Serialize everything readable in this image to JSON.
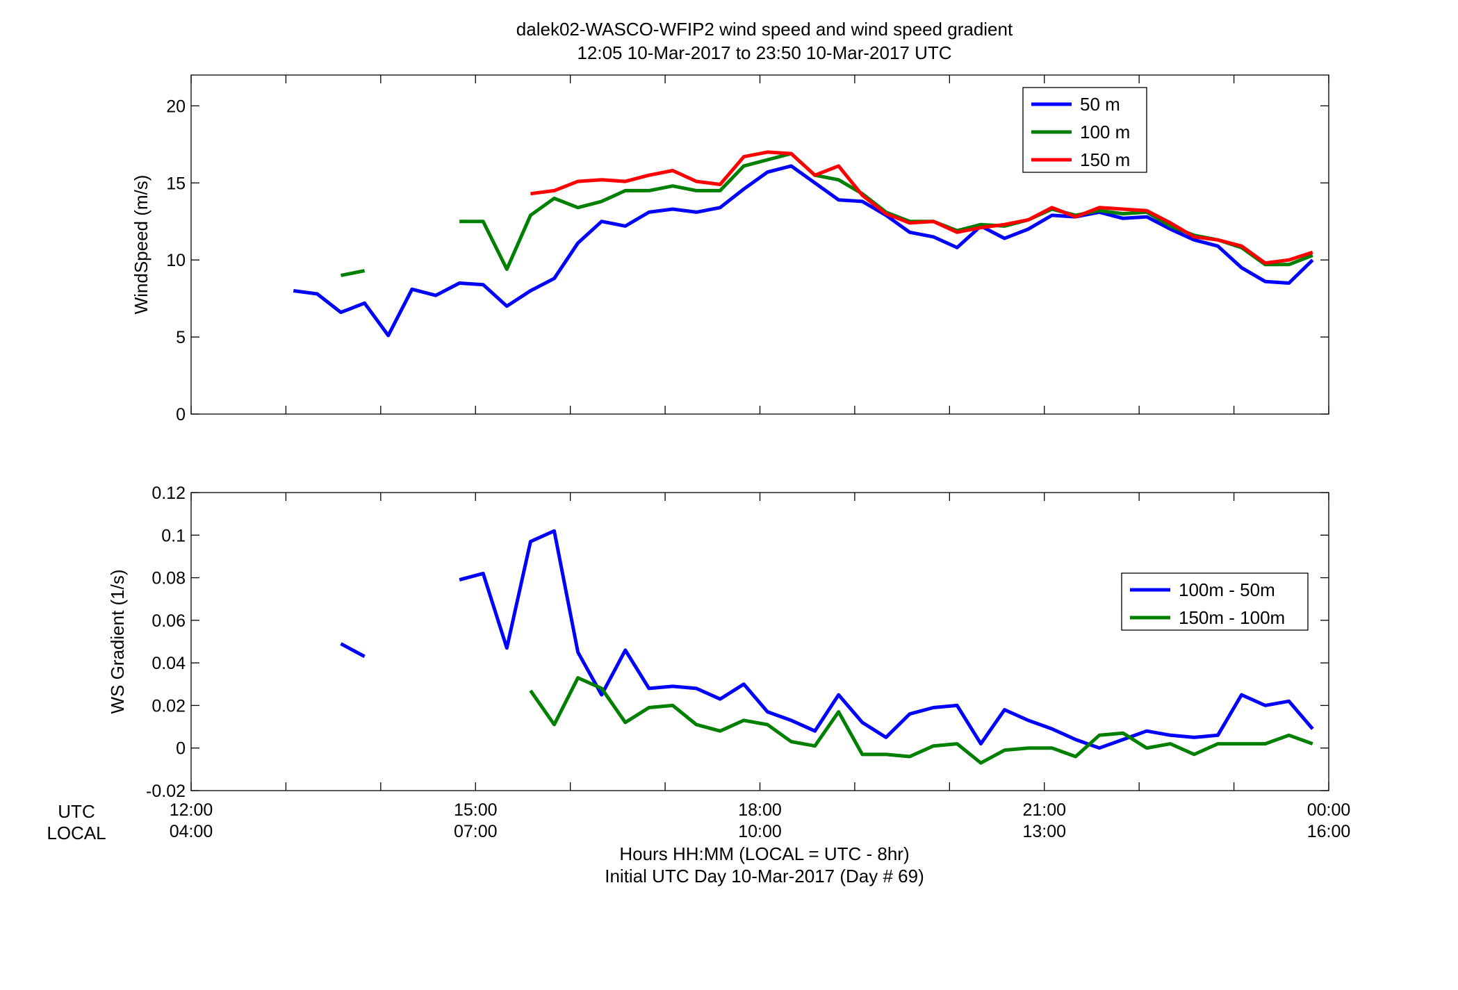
{
  "title": {
    "line1": "dalek02-WASCO-WFIP2  wind speed and wind speed gradient",
    "line2": "12:05 10-Mar-2017 to 23:50 10-Mar-2017  UTC"
  },
  "xaxis": {
    "utc_row_label": "UTC",
    "local_row_label": "LOCAL",
    "utc_ticks": [
      "12:00",
      "15:00",
      "18:00",
      "21:00",
      "00:00"
    ],
    "local_ticks": [
      "04:00",
      "07:00",
      "10:00",
      "13:00",
      "16:00"
    ],
    "label_line1": "Hours HH:MM  (LOCAL = UTC - 8hr)",
    "label_line2": "Initial UTC Day 10-Mar-2017 (Day # 69)"
  },
  "chart_data": [
    {
      "type": "line",
      "ylabel": "WindSpeed (m/s)",
      "xlim": [
        12.0,
        24.0
      ],
      "ylim": [
        0,
        22
      ],
      "yticks": [
        0,
        5,
        10,
        15,
        20
      ],
      "ytick_labels": [
        "0",
        "5",
        "10",
        "15",
        "20"
      ],
      "grid": false,
      "legend_position": "top-right",
      "x_units": "hours UTC",
      "series": [
        {
          "name": "50 m",
          "color": "#0000ff",
          "x": [
            13.08,
            13.33,
            13.58,
            13.83,
            14.08,
            14.33,
            14.58,
            14.83,
            15.08,
            15.33,
            15.58,
            15.83,
            16.08,
            16.33,
            16.58,
            16.83,
            17.08,
            17.33,
            17.58,
            17.83,
            18.08,
            18.33,
            18.58,
            18.83,
            19.08,
            19.33,
            19.58,
            19.83,
            20.08,
            20.33,
            20.58,
            20.83,
            21.08,
            21.33,
            21.58,
            21.83,
            22.08,
            22.33,
            22.58,
            22.83,
            23.08,
            23.33,
            23.58,
            23.83
          ],
          "y": [
            8.0,
            7.8,
            6.6,
            7.2,
            5.1,
            8.1,
            7.7,
            8.5,
            8.4,
            7.0,
            8.0,
            8.8,
            11.1,
            12.5,
            12.2,
            13.1,
            13.3,
            13.1,
            13.4,
            14.6,
            15.7,
            16.1,
            15.0,
            13.9,
            13.8,
            12.9,
            11.8,
            11.5,
            10.8,
            12.2,
            11.4,
            12.0,
            12.9,
            12.8,
            13.1,
            12.7,
            12.8,
            12.0,
            11.3,
            10.9,
            9.5,
            8.6,
            8.5,
            10.0
          ]
        },
        {
          "name": "100 m",
          "color": "#007f00",
          "x": [
            13.58,
            13.83,
            null,
            14.83,
            15.08,
            15.33,
            15.58,
            15.83,
            16.08,
            16.33,
            16.58,
            16.83,
            17.08,
            17.33,
            17.58,
            17.83,
            18.08,
            18.33,
            18.58,
            18.83,
            19.08,
            19.33,
            19.58,
            19.83,
            20.08,
            20.33,
            20.58,
            20.83,
            21.08,
            21.33,
            21.58,
            21.83,
            22.08,
            22.33,
            22.58,
            22.83,
            23.08,
            23.33,
            23.58,
            23.83
          ],
          "y": [
            9.0,
            9.3,
            null,
            12.5,
            12.5,
            9.4,
            12.9,
            14.0,
            13.4,
            13.8,
            14.5,
            14.5,
            14.8,
            14.5,
            14.5,
            16.1,
            16.5,
            16.9,
            15.5,
            15.2,
            14.3,
            13.1,
            12.5,
            12.5,
            11.9,
            12.3,
            12.2,
            12.6,
            13.3,
            12.9,
            13.2,
            13.0,
            13.1,
            12.2,
            11.6,
            11.3,
            10.8,
            9.7,
            9.7,
            10.3
          ]
        },
        {
          "name": "150 m",
          "color": "#ff0000",
          "x": [
            15.58,
            15.83,
            16.08,
            16.33,
            16.58,
            16.83,
            17.08,
            17.33,
            17.58,
            17.83,
            18.08,
            18.33,
            18.58,
            18.83,
            19.08,
            19.33,
            19.58,
            19.83,
            20.08,
            20.33,
            20.58,
            20.83,
            21.08,
            21.33,
            21.58,
            21.83,
            22.08,
            22.33,
            22.58,
            22.83,
            23.08,
            23.33,
            23.58,
            23.83
          ],
          "y": [
            14.3,
            14.5,
            15.1,
            15.2,
            15.1,
            15.5,
            15.8,
            15.1,
            14.9,
            16.7,
            17.0,
            16.9,
            15.5,
            16.1,
            14.2,
            13.0,
            12.4,
            12.5,
            11.8,
            12.1,
            12.3,
            12.6,
            13.4,
            12.8,
            13.4,
            13.3,
            13.2,
            12.4,
            11.5,
            11.3,
            10.9,
            9.8,
            10.0,
            10.5
          ]
        }
      ]
    },
    {
      "type": "line",
      "ylabel": "WS Gradient (1/s)",
      "xlim": [
        12.0,
        24.0
      ],
      "ylim": [
        -0.02,
        0.12
      ],
      "yticks": [
        -0.02,
        0,
        0.02,
        0.04,
        0.06,
        0.08,
        0.1,
        0.12
      ],
      "ytick_labels": [
        "-0.02",
        "0",
        "0.02",
        "0.04",
        "0.06",
        "0.08",
        "0.1",
        "0.12"
      ],
      "grid": false,
      "legend_position": "right",
      "x_units": "hours UTC",
      "series": [
        {
          "name": "100m - 50m",
          "color": "#0000ff",
          "x": [
            13.58,
            13.83,
            null,
            14.83,
            15.08,
            15.33,
            15.58,
            15.83,
            16.08,
            16.33,
            16.58,
            16.83,
            17.08,
            17.33,
            17.58,
            17.83,
            18.08,
            18.33,
            18.58,
            18.83,
            19.08,
            19.33,
            19.58,
            19.83,
            20.08,
            20.33,
            20.58,
            20.83,
            21.08,
            21.33,
            21.58,
            21.83,
            22.08,
            22.33,
            22.58,
            22.83,
            23.08,
            23.33,
            23.58,
            23.83
          ],
          "y": [
            0.049,
            0.043,
            null,
            0.079,
            0.082,
            0.047,
            0.097,
            0.102,
            0.045,
            0.025,
            0.046,
            0.028,
            0.029,
            0.028,
            0.023,
            0.03,
            0.017,
            0.013,
            0.008,
            0.025,
            0.012,
            0.005,
            0.016,
            0.019,
            0.02,
            0.002,
            0.018,
            0.013,
            0.009,
            0.004,
            0.0,
            0.004,
            0.008,
            0.006,
            0.005,
            0.006,
            0.025,
            0.02,
            0.022,
            0.009
          ]
        },
        {
          "name": "150m - 100m",
          "color": "#007f00",
          "x": [
            15.58,
            15.83,
            16.08,
            16.33,
            16.58,
            16.83,
            17.08,
            17.33,
            17.58,
            17.83,
            18.08,
            18.33,
            18.58,
            18.83,
            19.08,
            19.33,
            19.58,
            19.83,
            20.08,
            20.33,
            20.58,
            20.83,
            21.08,
            21.33,
            21.58,
            21.83,
            22.08,
            22.33,
            22.58,
            22.83,
            23.08,
            23.33,
            23.58,
            23.83
          ],
          "y": [
            0.027,
            0.011,
            0.033,
            0.028,
            0.012,
            0.019,
            0.02,
            0.011,
            0.008,
            0.013,
            0.011,
            0.003,
            0.001,
            0.017,
            -0.003,
            -0.003,
            -0.004,
            0.001,
            0.002,
            -0.007,
            -0.001,
            0.0,
            0.0,
            -0.004,
            0.006,
            0.007,
            0.0,
            0.002,
            -0.003,
            0.002,
            0.002,
            0.002,
            0.006,
            0.002
          ]
        }
      ]
    }
  ]
}
